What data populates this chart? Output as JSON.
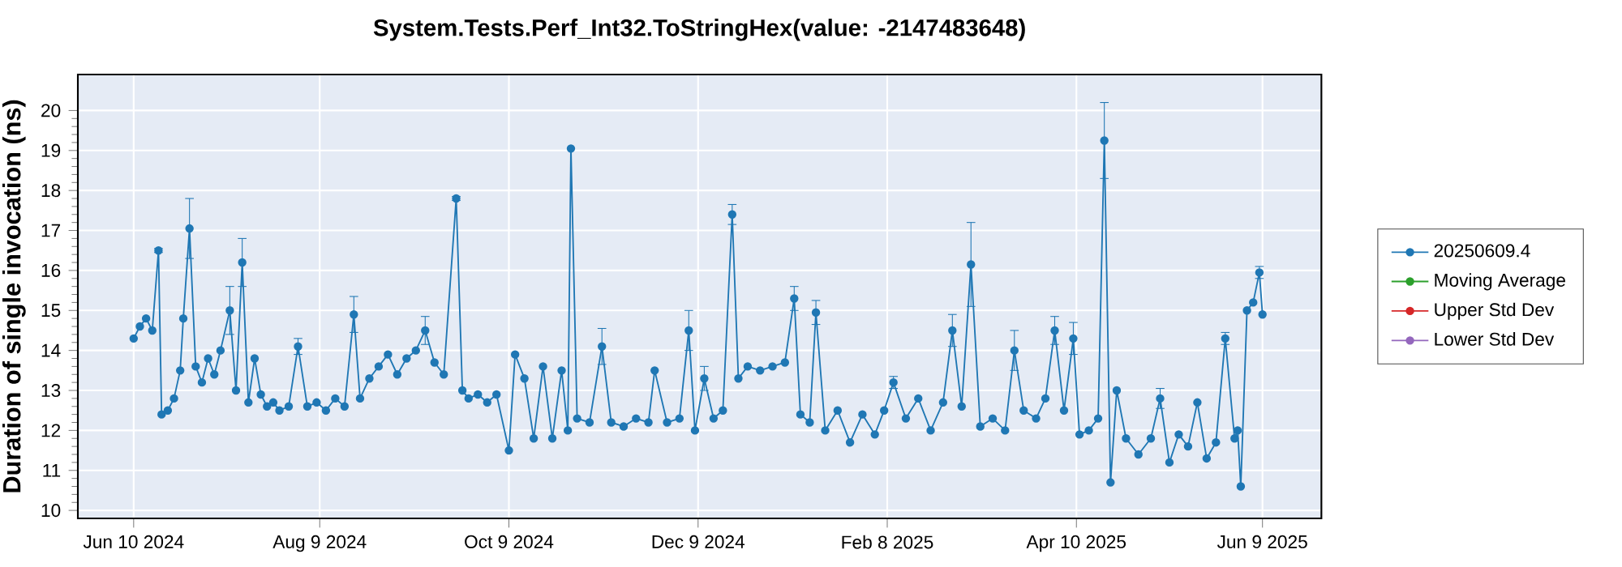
{
  "chart_data": {
    "type": "line",
    "title": "System.Tests.Perf_Int32.ToStringHex(value: -2147483648)",
    "ylabel": "Duration of single invocation (ns)",
    "xlim": [
      "2024-05-23",
      "2025-06-28"
    ],
    "xticks": [
      {
        "value": "2024-06-10",
        "label": "Jun 10 2024"
      },
      {
        "value": "2024-08-09",
        "label": "Aug 9 2024"
      },
      {
        "value": "2024-10-09",
        "label": "Oct 9 2024"
      },
      {
        "value": "2024-12-09",
        "label": "Dec 9 2024"
      },
      {
        "value": "2025-02-08",
        "label": "Feb 8 2025"
      },
      {
        "value": "2025-04-10",
        "label": "Apr 10 2025"
      },
      {
        "value": "2025-06-09",
        "label": "Jun 9 2025"
      }
    ],
    "ylim": [
      9.8,
      20.9
    ],
    "yticks": [
      10,
      11,
      12,
      13,
      14,
      15,
      16,
      17,
      18,
      19,
      20
    ],
    "grid": true,
    "legend": "right",
    "marker": "circle",
    "line_style": "solid",
    "x": [
      "2024-06-10",
      "2024-06-12",
      "2024-06-14",
      "2024-06-16",
      "2024-06-18",
      "2024-06-19",
      "2024-06-21",
      "2024-06-23",
      "2024-06-25",
      "2024-06-26",
      "2024-06-28",
      "2024-06-30",
      "2024-07-02",
      "2024-07-04",
      "2024-07-06",
      "2024-07-08",
      "2024-07-11",
      "2024-07-13",
      "2024-07-15",
      "2024-07-17",
      "2024-07-19",
      "2024-07-21",
      "2024-07-23",
      "2024-07-25",
      "2024-07-27",
      "2024-07-30",
      "2024-08-02",
      "2024-08-05",
      "2024-08-08",
      "2024-08-11",
      "2024-08-14",
      "2024-08-17",
      "2024-08-20",
      "2024-08-22",
      "2024-08-25",
      "2024-08-28",
      "2024-08-31",
      "2024-09-03",
      "2024-09-06",
      "2024-09-09",
      "2024-09-12",
      "2024-09-15",
      "2024-09-18",
      "2024-09-22",
      "2024-09-24",
      "2024-09-26",
      "2024-09-29",
      "2024-10-02",
      "2024-10-05",
      "2024-10-09",
      "2024-10-11",
      "2024-10-14",
      "2024-10-17",
      "2024-10-20",
      "2024-10-23",
      "2024-10-26",
      "2024-10-28",
      "2024-10-29",
      "2024-10-31",
      "2024-11-04",
      "2024-11-08",
      "2024-11-11",
      "2024-11-15",
      "2024-11-19",
      "2024-11-23",
      "2024-11-25",
      "2024-11-29",
      "2024-12-03",
      "2024-12-06",
      "2024-12-08",
      "2024-12-11",
      "2024-12-14",
      "2024-12-17",
      "2024-12-20",
      "2024-12-22",
      "2024-12-25",
      "2024-12-29",
      "2025-01-02",
      "2025-01-06",
      "2025-01-09",
      "2025-01-11",
      "2025-01-14",
      "2025-01-16",
      "2025-01-19",
      "2025-01-23",
      "2025-01-27",
      "2025-01-31",
      "2025-02-04",
      "2025-02-07",
      "2025-02-10",
      "2025-02-14",
      "2025-02-18",
      "2025-02-22",
      "2025-02-26",
      "2025-03-01",
      "2025-03-04",
      "2025-03-07",
      "2025-03-10",
      "2025-03-14",
      "2025-03-18",
      "2025-03-21",
      "2025-03-24",
      "2025-03-28",
      "2025-03-31",
      "2025-04-03",
      "2025-04-06",
      "2025-04-09",
      "2025-04-11",
      "2025-04-14",
      "2025-04-17",
      "2025-04-19",
      "2025-04-21",
      "2025-04-23",
      "2025-04-26",
      "2025-04-30",
      "2025-05-04",
      "2025-05-07",
      "2025-05-10",
      "2025-05-13",
      "2025-05-16",
      "2025-05-19",
      "2025-05-22",
      "2025-05-25",
      "2025-05-28",
      "2025-05-31",
      "2025-06-01",
      "2025-06-02",
      "2025-06-04",
      "2025-06-06",
      "2025-06-08",
      "2025-06-09"
    ],
    "series": [
      {
        "name": "20250609.4",
        "color": "#1f77b4",
        "values": [
          14.3,
          14.6,
          14.8,
          14.5,
          16.5,
          12.4,
          12.5,
          12.8,
          13.5,
          14.8,
          17.05,
          13.6,
          13.2,
          13.8,
          13.4,
          14.0,
          15.0,
          13.0,
          16.2,
          12.7,
          13.8,
          12.9,
          12.6,
          12.7,
          12.5,
          12.6,
          14.1,
          12.6,
          12.7,
          12.5,
          12.8,
          12.6,
          14.9,
          12.8,
          13.3,
          13.6,
          13.9,
          13.4,
          13.8,
          14.0,
          14.5,
          13.7,
          13.4,
          17.8,
          13.0,
          12.8,
          12.9,
          12.7,
          12.9,
          11.5,
          13.9,
          13.3,
          11.8,
          13.6,
          11.8,
          13.5,
          12.0,
          19.05,
          12.3,
          12.2,
          14.1,
          12.2,
          12.1,
          12.3,
          12.2,
          13.5,
          12.2,
          12.3,
          14.5,
          12.0,
          13.3,
          12.3,
          12.5,
          17.4,
          13.3,
          13.6,
          13.5,
          13.6,
          13.7,
          15.3,
          12.4,
          12.2,
          14.95,
          12.0,
          12.5,
          11.7,
          12.4,
          11.9,
          12.5,
          13.2,
          12.3,
          12.8,
          12.0,
          12.7,
          14.5,
          12.6,
          16.15,
          12.1,
          12.3,
          12.0,
          14.0,
          12.5,
          12.3,
          12.8,
          14.5,
          12.5,
          14.3,
          11.9,
          12.0,
          12.3,
          19.25,
          10.7,
          13.0,
          11.8,
          11.4,
          11.8,
          12.8,
          11.2,
          11.9,
          11.6,
          12.7,
          11.3,
          11.7,
          14.3,
          11.8,
          12.0,
          10.6,
          15.0,
          15.2,
          15.95,
          14.9
        ],
        "errors": [
          null,
          null,
          null,
          null,
          0.05,
          null,
          null,
          null,
          null,
          null,
          0.75,
          null,
          null,
          null,
          null,
          null,
          0.6,
          null,
          0.6,
          null,
          null,
          null,
          null,
          null,
          null,
          null,
          0.2,
          null,
          null,
          null,
          null,
          null,
          0.45,
          null,
          null,
          null,
          null,
          null,
          null,
          null,
          0.35,
          null,
          null,
          0.05,
          null,
          null,
          null,
          null,
          null,
          null,
          null,
          null,
          null,
          null,
          null,
          null,
          null,
          null,
          null,
          null,
          0.45,
          null,
          null,
          null,
          null,
          null,
          null,
          null,
          0.5,
          null,
          0.3,
          null,
          null,
          0.25,
          null,
          null,
          null,
          null,
          null,
          0.3,
          null,
          null,
          0.3,
          null,
          null,
          null,
          null,
          null,
          null,
          0.15,
          null,
          null,
          null,
          null,
          0.4,
          null,
          1.05,
          null,
          null,
          null,
          0.5,
          null,
          null,
          null,
          0.35,
          null,
          0.4,
          null,
          null,
          null,
          0.95,
          null,
          null,
          null,
          null,
          null,
          0.25,
          null,
          null,
          null,
          null,
          null,
          null,
          0.15,
          null,
          null,
          null,
          null,
          null,
          0.15,
          null
        ]
      },
      {
        "name": "Moving Average",
        "color": "#2ca02c",
        "values": [
          null,
          null,
          null,
          null,
          null,
          null,
          null,
          null,
          null,
          null,
          null,
          null,
          null,
          null,
          null,
          null,
          null,
          null,
          null,
          null,
          null,
          null,
          null,
          null,
          null,
          null,
          null,
          null,
          null,
          null,
          null,
          null,
          null,
          null,
          null,
          null,
          null,
          null,
          null,
          null,
          null,
          null,
          null,
          null,
          null,
          null,
          null,
          null,
          null,
          null,
          null,
          null,
          null,
          null,
          null,
          null,
          null,
          null,
          null,
          null,
          null,
          null,
          null,
          null,
          null,
          null,
          null,
          null,
          null,
          null,
          null,
          null,
          null,
          null,
          null,
          null,
          null,
          null,
          null,
          null,
          null,
          null,
          null,
          null,
          null,
          null,
          null,
          null,
          null,
          null,
          null,
          null,
          null,
          null,
          null,
          null,
          null,
          null,
          null,
          null,
          null,
          null,
          null,
          null,
          null,
          null,
          null,
          null,
          null,
          null,
          null,
          null,
          null,
          null,
          null,
          null,
          null,
          null,
          null,
          null,
          null,
          null,
          null,
          null,
          null,
          null,
          null,
          null,
          null,
          null,
          null
        ]
      },
      {
        "name": "Upper Std Dev",
        "color": "#d62728",
        "values": [
          null,
          null,
          null,
          null,
          null,
          null,
          null,
          null,
          null,
          null,
          null,
          null,
          null,
          null,
          null,
          null,
          null,
          null,
          null,
          null,
          null,
          null,
          null,
          null,
          null,
          null,
          null,
          null,
          null,
          null,
          null,
          null,
          null,
          null,
          null,
          null,
          null,
          null,
          null,
          null,
          null,
          null,
          null,
          null,
          null,
          null,
          null,
          null,
          null,
          null,
          null,
          null,
          null,
          null,
          null,
          null,
          null,
          null,
          null,
          null,
          null,
          null,
          null,
          null,
          null,
          null,
          null,
          null,
          null,
          null,
          null,
          null,
          null,
          null,
          null,
          null,
          null,
          null,
          null,
          null,
          null,
          null,
          null,
          null,
          null,
          null,
          null,
          null,
          null,
          null,
          null,
          null,
          null,
          null,
          null,
          null,
          null,
          null,
          null,
          null,
          null,
          null,
          null,
          null,
          null,
          null,
          null,
          null,
          null,
          null,
          null,
          null,
          null,
          null,
          null,
          null,
          null,
          null,
          null,
          null,
          null,
          null,
          null,
          null,
          null,
          null,
          null,
          null,
          null,
          null,
          null
        ]
      },
      {
        "name": "Lower Std Dev",
        "color": "#9467bd",
        "values": [
          null,
          null,
          null,
          null,
          null,
          null,
          null,
          null,
          null,
          null,
          null,
          null,
          null,
          null,
          null,
          null,
          null,
          null,
          null,
          null,
          null,
          null,
          null,
          null,
          null,
          null,
          null,
          null,
          null,
          null,
          null,
          null,
          null,
          null,
          null,
          null,
          null,
          null,
          null,
          null,
          null,
          null,
          null,
          null,
          null,
          null,
          null,
          null,
          null,
          null,
          null,
          null,
          null,
          null,
          null,
          null,
          null,
          null,
          null,
          null,
          null,
          null,
          null,
          null,
          null,
          null,
          null,
          null,
          null,
          null,
          null,
          null,
          null,
          null,
          null,
          null,
          null,
          null,
          null,
          null,
          null,
          null,
          null,
          null,
          null,
          null,
          null,
          null,
          null,
          null,
          null,
          null,
          null,
          null,
          null,
          null,
          null,
          null,
          null,
          null,
          null,
          null,
          null,
          null,
          null,
          null,
          null,
          null,
          null,
          null,
          null,
          null,
          null,
          null,
          null,
          null,
          null,
          null,
          null,
          null,
          null,
          null,
          null,
          null,
          null,
          null,
          null,
          null,
          null,
          null,
          null
        ]
      }
    ]
  }
}
